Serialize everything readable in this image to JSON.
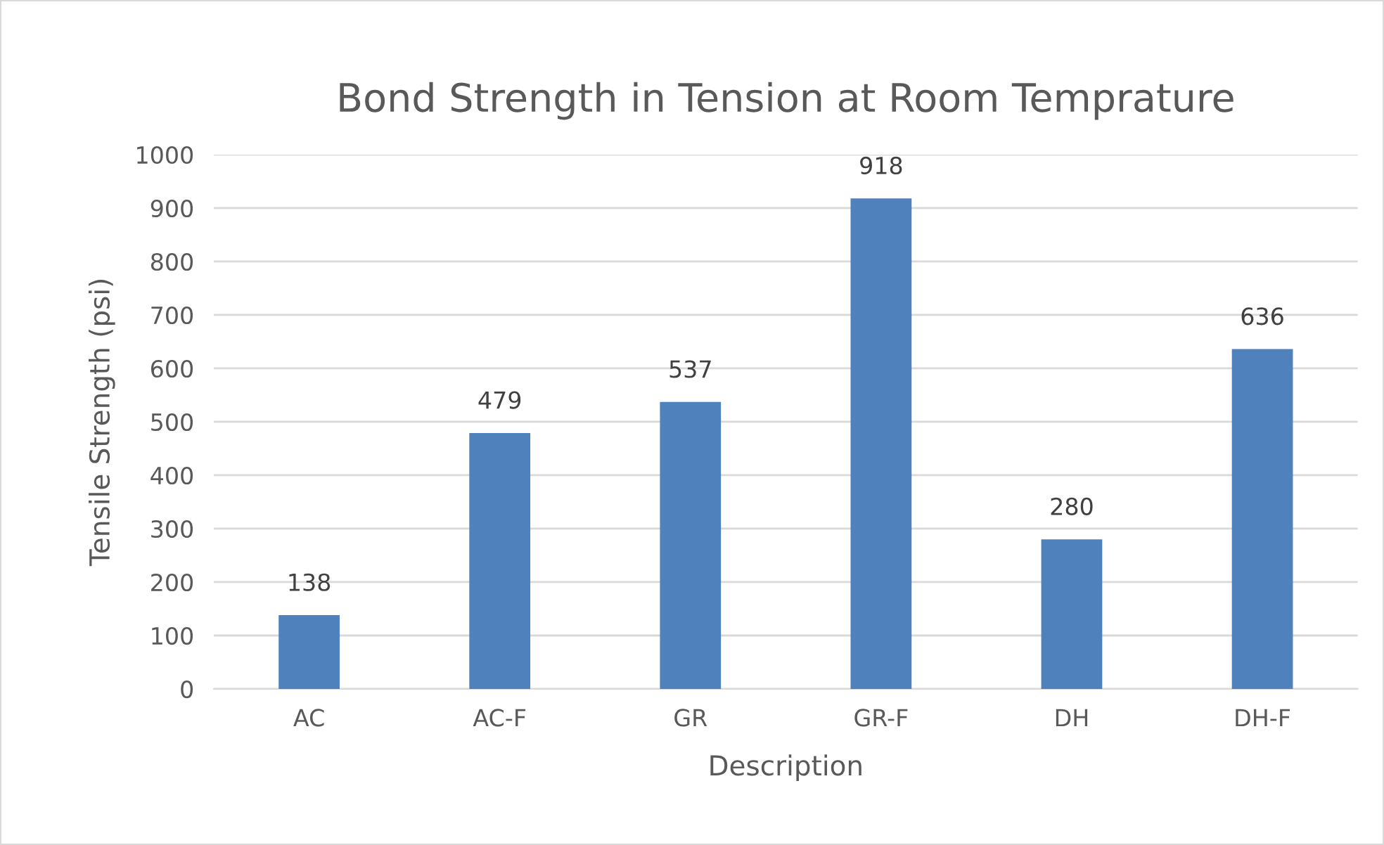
{
  "chart_data": {
    "type": "bar",
    "title": "Bond Strength in Tension at Room Temprature",
    "xlabel": "Description",
    "ylabel": "Tensile Strength (psi)",
    "categories": [
      "AC",
      "AC-F",
      "GR",
      "GR-F",
      "DH",
      "DH-F"
    ],
    "values": [
      138,
      479,
      537,
      918,
      280,
      636
    ],
    "color": "#4f81bd",
    "ylim": [
      0,
      1000
    ],
    "yticks": [
      0,
      100,
      200,
      300,
      400,
      500,
      600,
      700,
      800,
      900,
      1000
    ],
    "grid": "y",
    "data_labels": true,
    "legend": false
  }
}
